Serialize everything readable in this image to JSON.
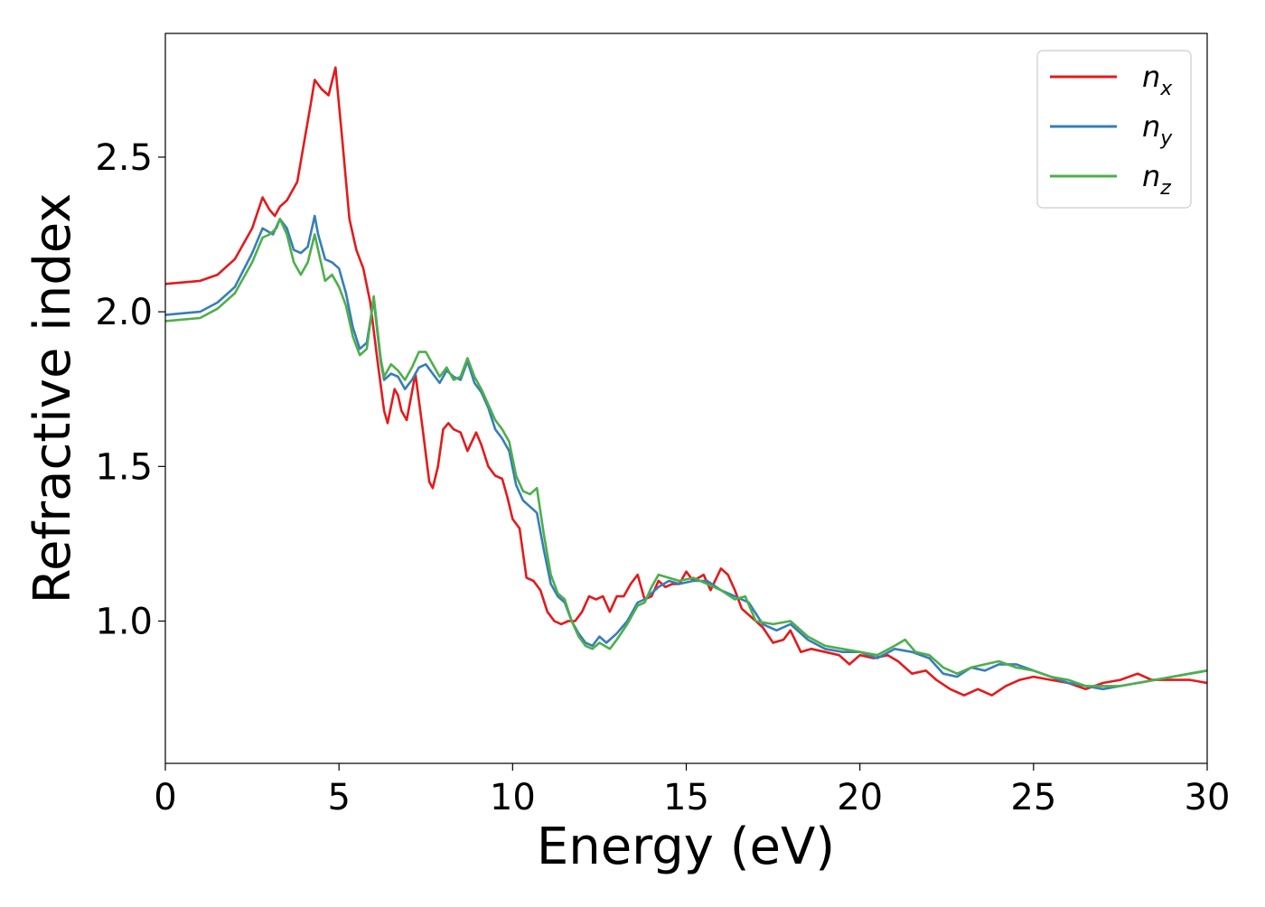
{
  "chart_data": {
    "type": "line",
    "title": "",
    "xlabel": "Energy (eV)",
    "ylabel": "Refractive index",
    "xlim": [
      0,
      30
    ],
    "ylim": [
      0.54,
      2.9
    ],
    "xticks": [
      0,
      5,
      10,
      15,
      20,
      25,
      30
    ],
    "xtick_labels": [
      "0",
      "5",
      "10",
      "15",
      "20",
      "25",
      "30"
    ],
    "yticks": [
      1.0,
      1.5,
      2.0,
      2.5
    ],
    "ytick_labels": [
      "1.0",
      "1.5",
      "2.0",
      "2.5"
    ],
    "grid": false,
    "legend_placement": "top-right",
    "series": [
      {
        "name": "n_x",
        "legend_base": "n",
        "legend_sub": "x",
        "color": "#e41a1c",
        "points": [
          [
            0,
            2.09
          ],
          [
            1,
            2.1
          ],
          [
            1.5,
            2.12
          ],
          [
            2,
            2.17
          ],
          [
            2.5,
            2.27
          ],
          [
            2.8,
            2.37
          ],
          [
            3.0,
            2.33
          ],
          [
            3.15,
            2.31
          ],
          [
            3.3,
            2.34
          ],
          [
            3.5,
            2.36
          ],
          [
            3.8,
            2.42
          ],
          [
            4.0,
            2.55
          ],
          [
            4.2,
            2.68
          ],
          [
            4.3,
            2.75
          ],
          [
            4.5,
            2.72
          ],
          [
            4.7,
            2.7
          ],
          [
            4.9,
            2.79
          ],
          [
            5.1,
            2.55
          ],
          [
            5.3,
            2.3
          ],
          [
            5.5,
            2.2
          ],
          [
            5.7,
            2.14
          ],
          [
            5.9,
            2.03
          ],
          [
            6.1,
            1.85
          ],
          [
            6.3,
            1.68
          ],
          [
            6.4,
            1.64
          ],
          [
            6.6,
            1.75
          ],
          [
            6.7,
            1.73
          ],
          [
            6.8,
            1.68
          ],
          [
            6.95,
            1.65
          ],
          [
            7.1,
            1.74
          ],
          [
            7.2,
            1.8
          ],
          [
            7.4,
            1.63
          ],
          [
            7.6,
            1.45
          ],
          [
            7.7,
            1.43
          ],
          [
            7.85,
            1.5
          ],
          [
            8.0,
            1.62
          ],
          [
            8.15,
            1.64
          ],
          [
            8.3,
            1.62
          ],
          [
            8.5,
            1.61
          ],
          [
            8.7,
            1.55
          ],
          [
            8.95,
            1.61
          ],
          [
            9.1,
            1.57
          ],
          [
            9.3,
            1.5
          ],
          [
            9.5,
            1.47
          ],
          [
            9.7,
            1.46
          ],
          [
            9.85,
            1.4
          ],
          [
            10.0,
            1.33
          ],
          [
            10.2,
            1.3
          ],
          [
            10.4,
            1.14
          ],
          [
            10.6,
            1.13
          ],
          [
            10.8,
            1.1
          ],
          [
            11.0,
            1.03
          ],
          [
            11.2,
            1.0
          ],
          [
            11.4,
            0.99
          ],
          [
            11.6,
            1.0
          ],
          [
            11.8,
            1.0
          ],
          [
            12.0,
            1.03
          ],
          [
            12.2,
            1.08
          ],
          [
            12.4,
            1.07
          ],
          [
            12.6,
            1.08
          ],
          [
            12.8,
            1.03
          ],
          [
            13.0,
            1.08
          ],
          [
            13.2,
            1.08
          ],
          [
            13.4,
            1.12
          ],
          [
            13.6,
            1.15
          ],
          [
            13.8,
            1.07
          ],
          [
            14.0,
            1.08
          ],
          [
            14.2,
            1.13
          ],
          [
            14.4,
            1.11
          ],
          [
            14.6,
            1.12
          ],
          [
            14.8,
            1.12
          ],
          [
            15.0,
            1.16
          ],
          [
            15.2,
            1.13
          ],
          [
            15.5,
            1.15
          ],
          [
            15.7,
            1.1
          ],
          [
            16.0,
            1.17
          ],
          [
            16.2,
            1.15
          ],
          [
            16.4,
            1.1
          ],
          [
            16.6,
            1.04
          ],
          [
            16.8,
            1.02
          ],
          [
            17.0,
            1.0
          ],
          [
            17.2,
            0.98
          ],
          [
            17.5,
            0.93
          ],
          [
            17.8,
            0.94
          ],
          [
            18.0,
            0.97
          ],
          [
            18.3,
            0.9
          ],
          [
            18.6,
            0.91
          ],
          [
            19.0,
            0.9
          ],
          [
            19.4,
            0.89
          ],
          [
            19.7,
            0.86
          ],
          [
            20.0,
            0.89
          ],
          [
            20.4,
            0.88
          ],
          [
            20.8,
            0.89
          ],
          [
            21.1,
            0.87
          ],
          [
            21.5,
            0.83
          ],
          [
            21.9,
            0.84
          ],
          [
            22.2,
            0.81
          ],
          [
            22.6,
            0.78
          ],
          [
            23.0,
            0.76
          ],
          [
            23.4,
            0.78
          ],
          [
            23.8,
            0.76
          ],
          [
            24.2,
            0.79
          ],
          [
            24.6,
            0.81
          ],
          [
            25.0,
            0.82
          ],
          [
            25.5,
            0.81
          ],
          [
            26.0,
            0.8
          ],
          [
            26.5,
            0.78
          ],
          [
            27.0,
            0.8
          ],
          [
            27.5,
            0.81
          ],
          [
            28.0,
            0.83
          ],
          [
            28.4,
            0.81
          ],
          [
            29.0,
            0.81
          ],
          [
            29.5,
            0.81
          ],
          [
            30.0,
            0.8
          ]
        ]
      },
      {
        "name": "n_y",
        "legend_base": "n",
        "legend_sub": "y",
        "color": "#377eb8",
        "points": [
          [
            0,
            1.99
          ],
          [
            1,
            2.0
          ],
          [
            1.5,
            2.03
          ],
          [
            2,
            2.08
          ],
          [
            2.5,
            2.19
          ],
          [
            2.8,
            2.27
          ],
          [
            3.1,
            2.25
          ],
          [
            3.3,
            2.3
          ],
          [
            3.5,
            2.27
          ],
          [
            3.7,
            2.2
          ],
          [
            3.9,
            2.19
          ],
          [
            4.1,
            2.21
          ],
          [
            4.3,
            2.31
          ],
          [
            4.4,
            2.25
          ],
          [
            4.6,
            2.17
          ],
          [
            4.8,
            2.16
          ],
          [
            5.0,
            2.14
          ],
          [
            5.2,
            2.06
          ],
          [
            5.4,
            1.95
          ],
          [
            5.6,
            1.88
          ],
          [
            5.8,
            1.9
          ],
          [
            6.0,
            2.04
          ],
          [
            6.2,
            1.84
          ],
          [
            6.3,
            1.78
          ],
          [
            6.5,
            1.8
          ],
          [
            6.7,
            1.79
          ],
          [
            6.9,
            1.75
          ],
          [
            7.1,
            1.78
          ],
          [
            7.3,
            1.82
          ],
          [
            7.5,
            1.83
          ],
          [
            7.7,
            1.8
          ],
          [
            7.9,
            1.77
          ],
          [
            8.1,
            1.81
          ],
          [
            8.3,
            1.79
          ],
          [
            8.5,
            1.78
          ],
          [
            8.7,
            1.84
          ],
          [
            8.9,
            1.77
          ],
          [
            9.1,
            1.74
          ],
          [
            9.3,
            1.69
          ],
          [
            9.5,
            1.62
          ],
          [
            9.7,
            1.59
          ],
          [
            9.9,
            1.55
          ],
          [
            10.1,
            1.44
          ],
          [
            10.3,
            1.39
          ],
          [
            10.5,
            1.37
          ],
          [
            10.7,
            1.35
          ],
          [
            10.9,
            1.23
          ],
          [
            11.1,
            1.12
          ],
          [
            11.3,
            1.08
          ],
          [
            11.5,
            1.06
          ],
          [
            11.7,
            1.0
          ],
          [
            11.9,
            0.96
          ],
          [
            12.1,
            0.93
          ],
          [
            12.3,
            0.92
          ],
          [
            12.5,
            0.95
          ],
          [
            12.7,
            0.93
          ],
          [
            13.0,
            0.96
          ],
          [
            13.3,
            1.0
          ],
          [
            13.6,
            1.06
          ],
          [
            13.8,
            1.07
          ],
          [
            14.0,
            1.09
          ],
          [
            14.2,
            1.11
          ],
          [
            14.5,
            1.13
          ],
          [
            14.8,
            1.12
          ],
          [
            15.2,
            1.13
          ],
          [
            15.6,
            1.13
          ],
          [
            16.0,
            1.1
          ],
          [
            16.4,
            1.08
          ],
          [
            16.8,
            1.06
          ],
          [
            17.2,
            0.99
          ],
          [
            17.6,
            0.97
          ],
          [
            18.0,
            0.99
          ],
          [
            18.5,
            0.94
          ],
          [
            19.0,
            0.91
          ],
          [
            19.5,
            0.9
          ],
          [
            20.0,
            0.9
          ],
          [
            20.5,
            0.88
          ],
          [
            21.0,
            0.91
          ],
          [
            21.5,
            0.9
          ],
          [
            22.0,
            0.88
          ],
          [
            22.4,
            0.83
          ],
          [
            22.8,
            0.82
          ],
          [
            23.2,
            0.85
          ],
          [
            23.6,
            0.84
          ],
          [
            24.0,
            0.86
          ],
          [
            24.5,
            0.86
          ],
          [
            25.0,
            0.84
          ],
          [
            25.5,
            0.82
          ],
          [
            26.0,
            0.8
          ],
          [
            26.5,
            0.79
          ],
          [
            27.0,
            0.78
          ],
          [
            27.5,
            0.79
          ],
          [
            28.0,
            0.8
          ],
          [
            28.5,
            0.81
          ],
          [
            29.0,
            0.82
          ],
          [
            29.5,
            0.83
          ],
          [
            30.0,
            0.84
          ]
        ]
      },
      {
        "name": "n_z",
        "legend_base": "n",
        "legend_sub": "z",
        "color": "#4daf4a",
        "points": [
          [
            0,
            1.97
          ],
          [
            1,
            1.98
          ],
          [
            1.5,
            2.01
          ],
          [
            2,
            2.06
          ],
          [
            2.5,
            2.16
          ],
          [
            2.8,
            2.24
          ],
          [
            3.0,
            2.25
          ],
          [
            3.2,
            2.27
          ],
          [
            3.3,
            2.3
          ],
          [
            3.5,
            2.25
          ],
          [
            3.7,
            2.16
          ],
          [
            3.9,
            2.12
          ],
          [
            4.1,
            2.16
          ],
          [
            4.3,
            2.25
          ],
          [
            4.4,
            2.2
          ],
          [
            4.6,
            2.1
          ],
          [
            4.8,
            2.12
          ],
          [
            5.0,
            2.08
          ],
          [
            5.2,
            2.02
          ],
          [
            5.4,
            1.92
          ],
          [
            5.6,
            1.86
          ],
          [
            5.8,
            1.88
          ],
          [
            6.0,
            2.05
          ],
          [
            6.2,
            1.85
          ],
          [
            6.3,
            1.79
          ],
          [
            6.5,
            1.83
          ],
          [
            6.7,
            1.81
          ],
          [
            6.9,
            1.78
          ],
          [
            7.1,
            1.82
          ],
          [
            7.3,
            1.87
          ],
          [
            7.5,
            1.87
          ],
          [
            7.7,
            1.83
          ],
          [
            7.9,
            1.79
          ],
          [
            8.1,
            1.82
          ],
          [
            8.3,
            1.78
          ],
          [
            8.5,
            1.79
          ],
          [
            8.7,
            1.85
          ],
          [
            8.9,
            1.79
          ],
          [
            9.1,
            1.75
          ],
          [
            9.3,
            1.7
          ],
          [
            9.5,
            1.65
          ],
          [
            9.7,
            1.62
          ],
          [
            9.9,
            1.58
          ],
          [
            10.1,
            1.47
          ],
          [
            10.3,
            1.42
          ],
          [
            10.5,
            1.41
          ],
          [
            10.7,
            1.43
          ],
          [
            10.9,
            1.28
          ],
          [
            11.1,
            1.15
          ],
          [
            11.3,
            1.09
          ],
          [
            11.5,
            1.07
          ],
          [
            11.7,
            1.0
          ],
          [
            11.9,
            0.95
          ],
          [
            12.1,
            0.92
          ],
          [
            12.3,
            0.91
          ],
          [
            12.5,
            0.93
          ],
          [
            12.8,
            0.91
          ],
          [
            13.0,
            0.94
          ],
          [
            13.3,
            0.99
          ],
          [
            13.6,
            1.05
          ],
          [
            13.8,
            1.06
          ],
          [
            14.0,
            1.11
          ],
          [
            14.2,
            1.15
          ],
          [
            14.5,
            1.14
          ],
          [
            14.8,
            1.13
          ],
          [
            15.2,
            1.14
          ],
          [
            15.6,
            1.12
          ],
          [
            16.0,
            1.1
          ],
          [
            16.4,
            1.07
          ],
          [
            16.7,
            1.08
          ],
          [
            17.0,
            1.0
          ],
          [
            17.5,
            0.99
          ],
          [
            18.0,
            1.0
          ],
          [
            18.5,
            0.95
          ],
          [
            19.0,
            0.92
          ],
          [
            19.5,
            0.91
          ],
          [
            20.0,
            0.9
          ],
          [
            20.5,
            0.89
          ],
          [
            21.0,
            0.92
          ],
          [
            21.3,
            0.94
          ],
          [
            21.6,
            0.9
          ],
          [
            22.0,
            0.89
          ],
          [
            22.4,
            0.85
          ],
          [
            22.8,
            0.83
          ],
          [
            23.2,
            0.85
          ],
          [
            23.6,
            0.86
          ],
          [
            24.0,
            0.87
          ],
          [
            24.5,
            0.85
          ],
          [
            25.0,
            0.84
          ],
          [
            25.5,
            0.82
          ],
          [
            26.0,
            0.81
          ],
          [
            26.5,
            0.79
          ],
          [
            27.0,
            0.79
          ],
          [
            27.5,
            0.79
          ],
          [
            28.0,
            0.8
          ],
          [
            28.5,
            0.81
          ],
          [
            29.0,
            0.82
          ],
          [
            29.5,
            0.83
          ],
          [
            30.0,
            0.84
          ]
        ]
      }
    ]
  }
}
